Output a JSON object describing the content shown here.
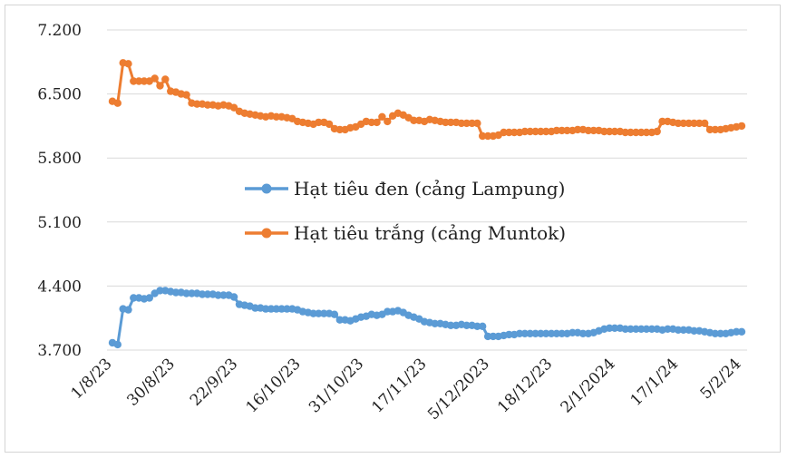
{
  "chart_data": {
    "type": "line",
    "title": "",
    "xlabel": "",
    "ylabel": "",
    "ylim": [
      3700,
      7200
    ],
    "y_ticks": [
      "3.700",
      "4.400",
      "5.100",
      "5.800",
      "6.500",
      "7.200"
    ],
    "y_tick_values": [
      3700,
      4400,
      5100,
      5800,
      6500,
      7200
    ],
    "x_tick_labels": [
      "1/8/23",
      "30/8/23",
      "22/9/23",
      "16/10/23",
      "31/10/23",
      "17/11/23",
      "5/12/2023",
      "18/12/23",
      "2/1/2024",
      "17/1/24",
      "5/2/24"
    ],
    "grid": true,
    "legend_position": "center",
    "series": [
      {
        "name": "Hạt tiêu đen (cảng Lampung)",
        "color": "#5b9bd5",
        "values": [
          3780,
          3760,
          4150,
          4140,
          4270,
          4270,
          4260,
          4270,
          4320,
          4350,
          4350,
          4340,
          4330,
          4330,
          4320,
          4320,
          4320,
          4310,
          4310,
          4310,
          4300,
          4300,
          4300,
          4280,
          4200,
          4190,
          4180,
          4160,
          4160,
          4150,
          4150,
          4150,
          4150,
          4150,
          4150,
          4140,
          4120,
          4110,
          4100,
          4100,
          4100,
          4100,
          4090,
          4030,
          4030,
          4020,
          4040,
          4060,
          4070,
          4090,
          4080,
          4090,
          4120,
          4120,
          4130,
          4110,
          4080,
          4060,
          4040,
          4010,
          4000,
          3990,
          3990,
          3980,
          3970,
          3970,
          3980,
          3970,
          3970,
          3960,
          3960,
          3850,
          3850,
          3850,
          3860,
          3870,
          3870,
          3880,
          3880,
          3880,
          3880,
          3880,
          3880,
          3880,
          3880,
          3880,
          3880,
          3890,
          3890,
          3880,
          3880,
          3890,
          3910,
          3930,
          3940,
          3940,
          3940,
          3930,
          3930,
          3930,
          3930,
          3930,
          3930,
          3930,
          3920,
          3930,
          3930,
          3920,
          3920,
          3920,
          3910,
          3910,
          3900,
          3890,
          3880,
          3880,
          3880,
          3890,
          3900,
          3900
        ]
      },
      {
        "name": "Hạt tiêu trắng (cảng Muntok)",
        "color": "#ed7d31",
        "values": [
          6420,
          6400,
          6840,
          6830,
          6640,
          6640,
          6640,
          6640,
          6670,
          6590,
          6660,
          6530,
          6520,
          6500,
          6490,
          6400,
          6390,
          6390,
          6380,
          6380,
          6370,
          6380,
          6370,
          6350,
          6310,
          6290,
          6280,
          6270,
          6260,
          6250,
          6260,
          6250,
          6250,
          6240,
          6230,
          6200,
          6190,
          6180,
          6170,
          6190,
          6190,
          6170,
          6120,
          6110,
          6110,
          6130,
          6140,
          6170,
          6200,
          6190,
          6190,
          6250,
          6200,
          6260,
          6290,
          6270,
          6240,
          6210,
          6210,
          6200,
          6220,
          6210,
          6200,
          6190,
          6190,
          6190,
          6180,
          6180,
          6180,
          6180,
          6040,
          6040,
          6040,
          6050,
          6080,
          6080,
          6080,
          6080,
          6090,
          6090,
          6090,
          6090,
          6090,
          6090,
          6100,
          6100,
          6100,
          6100,
          6110,
          6110,
          6100,
          6100,
          6100,
          6090,
          6090,
          6090,
          6090,
          6080,
          6080,
          6080,
          6080,
          6080,
          6080,
          6090,
          6200,
          6200,
          6190,
          6180,
          6180,
          6180,
          6180,
          6180,
          6180,
          6110,
          6110,
          6110,
          6120,
          6130,
          6140,
          6150
        ]
      }
    ]
  }
}
